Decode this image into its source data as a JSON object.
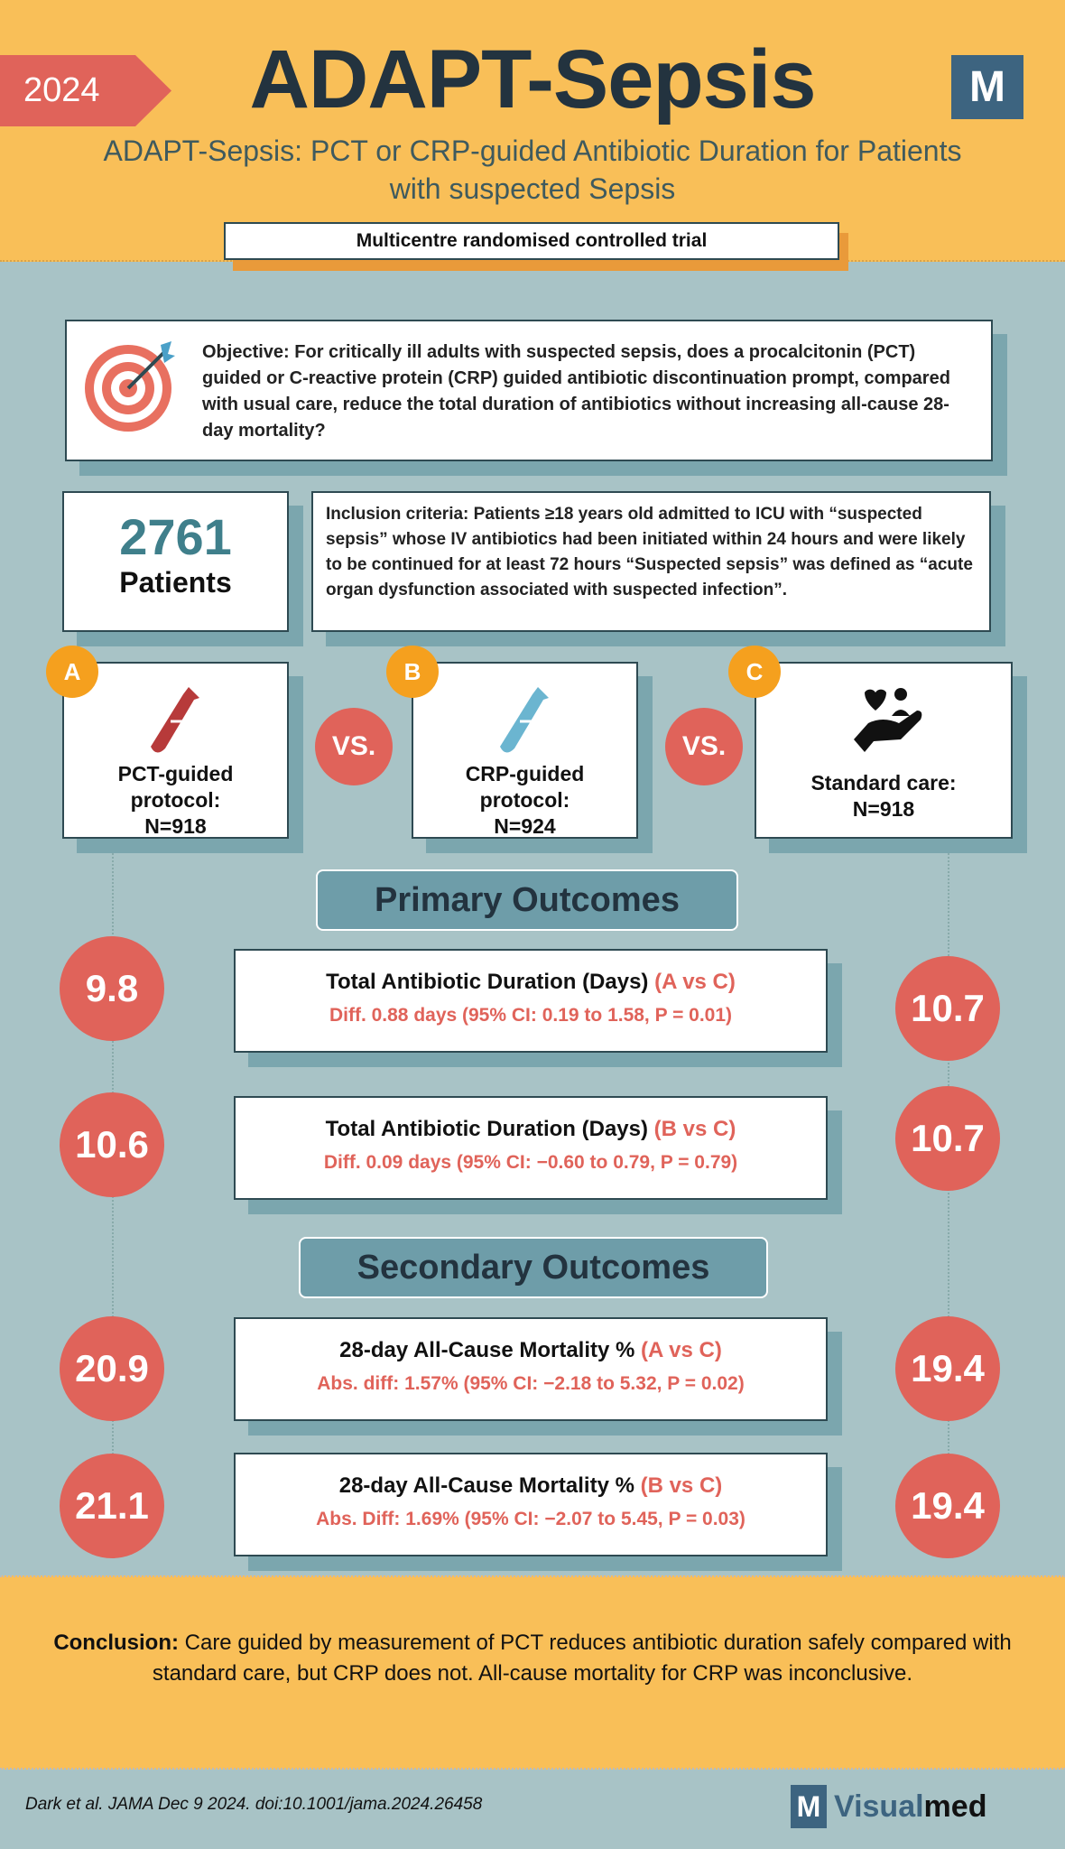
{
  "header": {
    "year": "2024",
    "title": "ADAPT-Sepsis",
    "logo_letter": "M",
    "subtitle": "ADAPT-Sepsis: PCT or CRP-guided Antibiotic Duration for Patients with suspected Sepsis",
    "trial_type": "Multicentre randomised controlled trial"
  },
  "objective": {
    "label": "Objective:",
    "text": " For critically ill adults with suspected sepsis, does a procalcitonin (PCT) guided or C-reactive protein (CRP) guided antibiotic discontinuation prompt, compared with usual care, reduce the total duration of antibiotics without increasing all-cause 28-day mortality?",
    "icon": "target-icon"
  },
  "patients": {
    "count": "2761",
    "label": "Patients"
  },
  "inclusion": {
    "label": "Inclusion criteria:",
    "text": " Patients ≥18 years old admitted to ICU with “suspected sepsis” whose IV antibiotics had been initiated within 24 hours and were likely to be continued for at least 72 hours “Suspected sepsis” was defined as “acute organ dysfunction associated with suspected infection”."
  },
  "arms": [
    {
      "badge": "A",
      "line1": "PCT-guided",
      "line2": "protocol:",
      "n": "N=918",
      "icon": "test-tube-icon",
      "color": "#B73A3A"
    },
    {
      "badge": "B",
      "line1": "CRP-guided",
      "line2": "protocol:",
      "n": "N=924",
      "icon": "test-tube-icon",
      "color": "#6BB5D0"
    },
    {
      "badge": "C",
      "line1": "Standard care:",
      "line2": "",
      "n": "N=918",
      "icon": "caring-hand-icon",
      "color": "#111111"
    }
  ],
  "vs_label": "VS.",
  "primary": {
    "heading": "Primary Outcomes",
    "items": [
      {
        "left": "9.8",
        "right": "10.7",
        "title": "Total Antibiotic Duration (Days)",
        "comparison": "(A vs C)",
        "detail": "Diff. 0.88 days (95% CI: 0.19 to 1.58, P = 0.01)"
      },
      {
        "left": "10.6",
        "right": "10.7",
        "title": "Total Antibiotic Duration (Days)",
        "comparison": "(B vs C)",
        "detail": "Diff. 0.09 days (95% CI: −0.60 to 0.79, P = 0.79)"
      }
    ]
  },
  "secondary": {
    "heading": "Secondary Outcomes",
    "items": [
      {
        "left": "20.9",
        "right": "19.4",
        "title": "28-day All-Cause Mortality %",
        "comparison": "(A vs C)",
        "detail": "Abs. diff: 1.57% (95% CI: −2.18 to 5.32, P = 0.02)"
      },
      {
        "left": "21.1",
        "right": "19.4",
        "title": "28-day All-Cause Mortality %",
        "comparison": "(B vs C)",
        "detail": "Abs. Diff: 1.69% (95% CI: −2.07 to 5.45, P = 0.03)"
      }
    ]
  },
  "conclusion": {
    "label": "Conclusion:",
    "text": " Care guided by measurement of PCT reduces antibiotic duration safely compared with standard care, but CRP does not. All-cause mortality for CRP was inconclusive."
  },
  "footer": {
    "citation": "Dark et al. JAMA Dec 9 2024. doi:10.1001/jama.2024.26458",
    "brand_letter": "M",
    "brand_part1": "Visual",
    "brand_part2": "med"
  },
  "colors": {
    "yellow": "#F9BF58",
    "teal": "#A8C3C6",
    "red": "#E0635A",
    "orange": "#F5A01E",
    "dark": "#23333F"
  }
}
